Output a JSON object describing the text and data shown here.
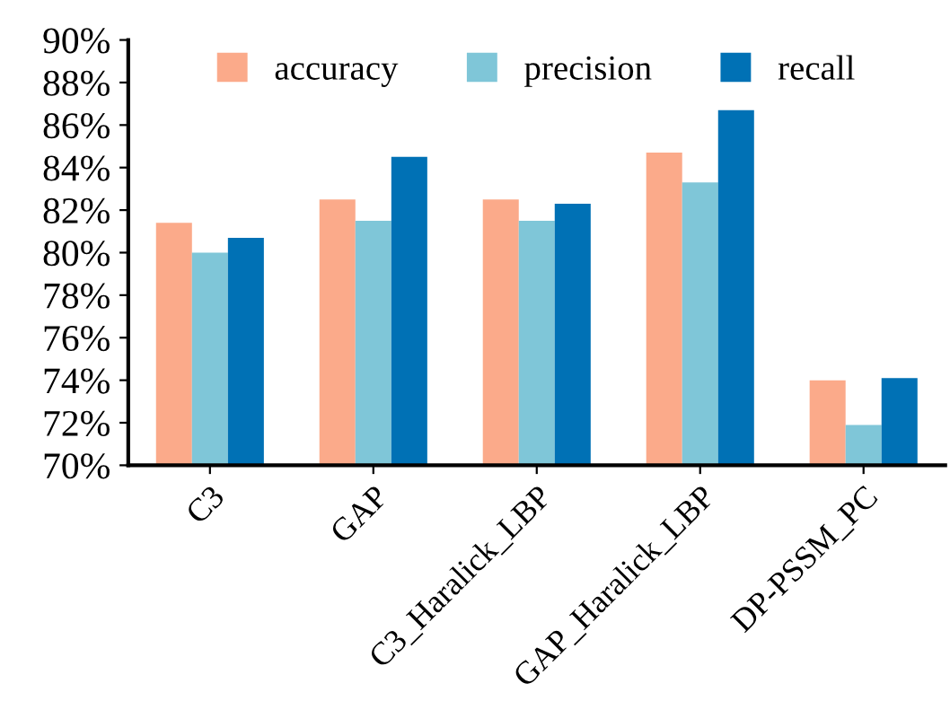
{
  "chart_data": {
    "type": "bar",
    "categories": [
      "C3",
      "GAP",
      "C3_Haralick_LBP",
      "GAP_Haralick_LBP",
      "DP-PSSM_PC"
    ],
    "series": [
      {
        "name": "accuracy",
        "color": "#fbaa8a",
        "values": [
          81.4,
          82.5,
          82.5,
          84.7,
          74.0
        ]
      },
      {
        "name": "precision",
        "color": "#7fc6d8",
        "values": [
          80.0,
          81.5,
          81.5,
          83.3,
          71.9
        ]
      },
      {
        "name": "recall",
        "color": "#0071b5",
        "values": [
          80.7,
          84.5,
          82.3,
          86.7,
          74.1
        ]
      }
    ],
    "ylim": [
      70,
      90
    ],
    "yticks": [
      {
        "value": 70,
        "label": "70%"
      },
      {
        "value": 72,
        "label": "72%"
      },
      {
        "value": 74,
        "label": "74%"
      },
      {
        "value": 76,
        "label": "76%"
      },
      {
        "value": 78,
        "label": "78%"
      },
      {
        "value": 80,
        "label": "80%"
      },
      {
        "value": 82,
        "label": "82%"
      },
      {
        "value": 84,
        "label": "84%"
      },
      {
        "value": 86,
        "label": "86%"
      },
      {
        "value": 88,
        "label": "88%"
      },
      {
        "value": 90,
        "label": "90%"
      }
    ],
    "grid": false,
    "legend": "top"
  }
}
